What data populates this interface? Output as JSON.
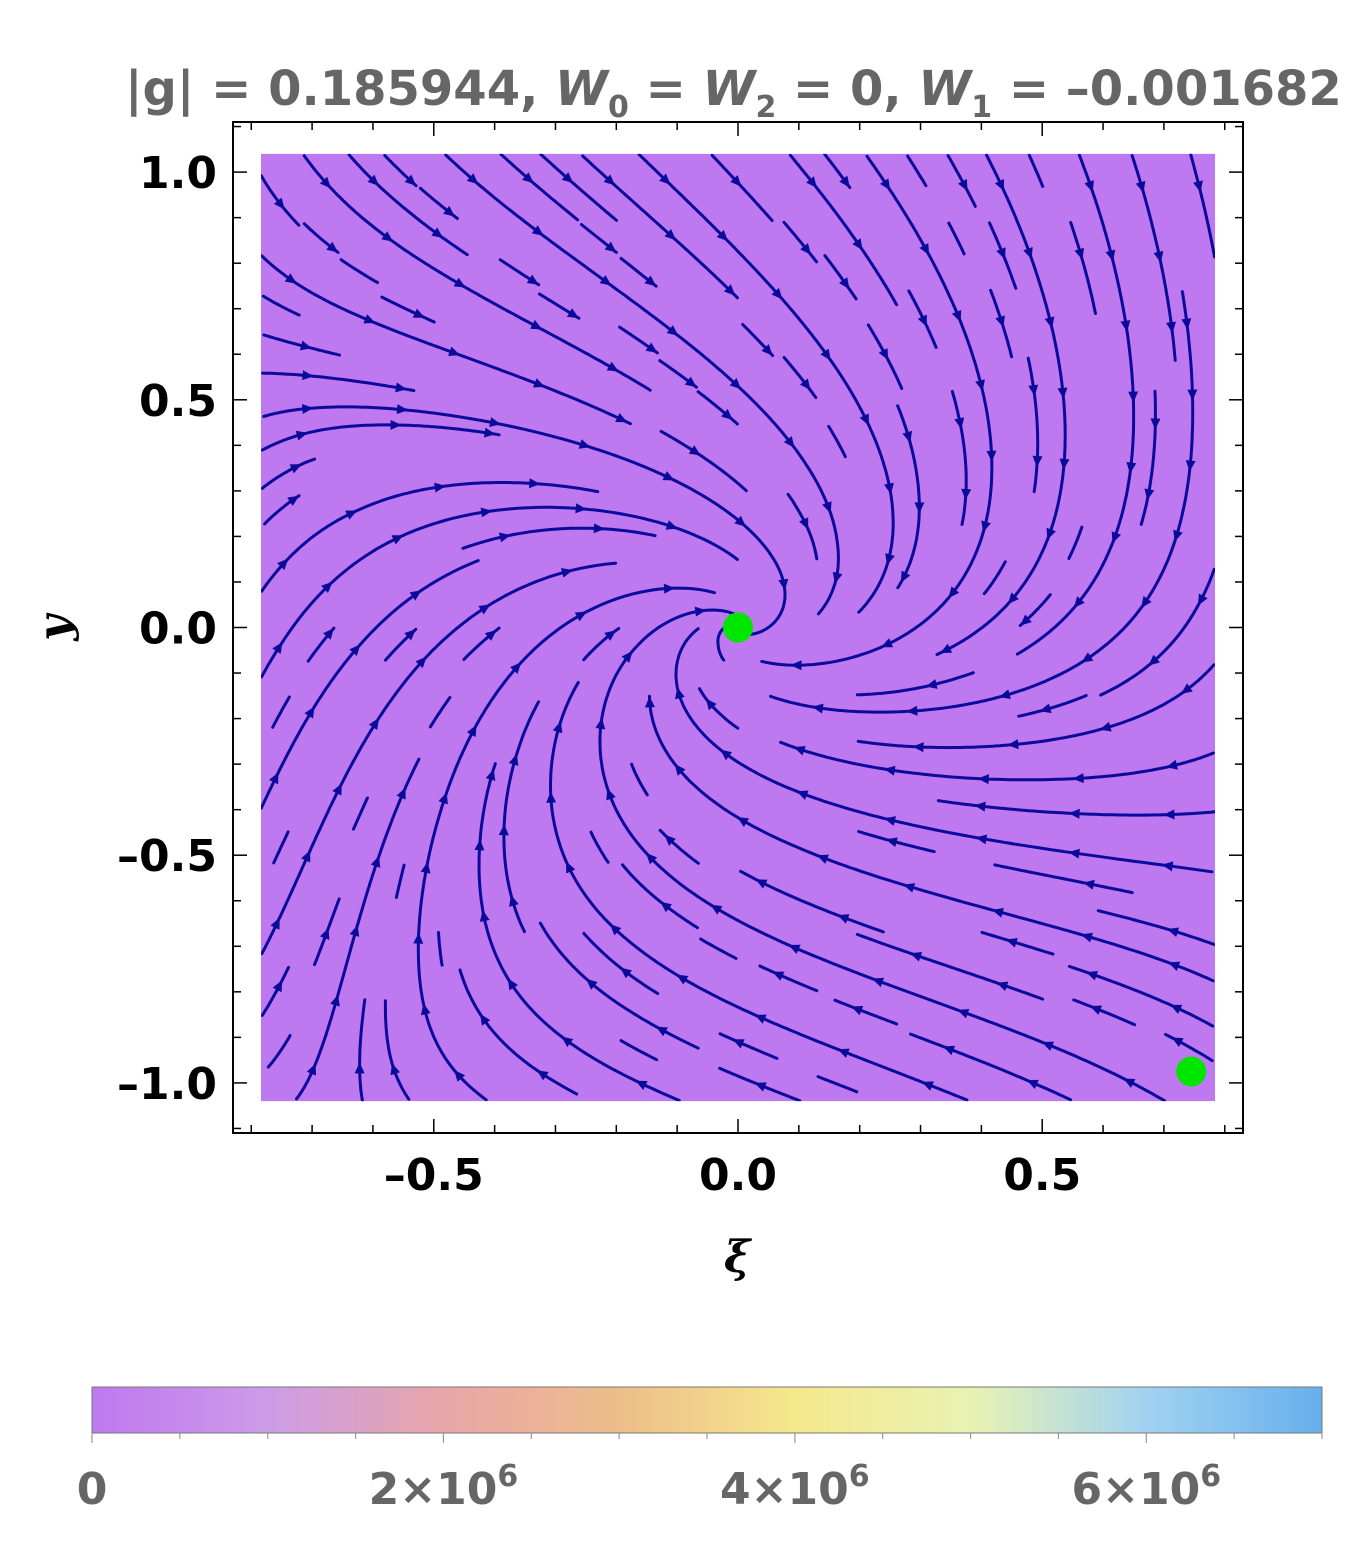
{
  "chart_data": {
    "type": "streamplot",
    "title": {
      "g_text": "|g| = 0.185944, ",
      "w_var": "W",
      "w0_sub": "0",
      "eq1": " = ",
      "w2_sub": "2",
      "eq2": " = 0, ",
      "w1_sub": "1",
      "eq3": " = –0.001682"
    },
    "xlabel": "ξ",
    "ylabel": "y",
    "xlim": [
      -0.83,
      0.83
    ],
    "ylim": [
      -1.11,
      1.11
    ],
    "x_ticks": [
      {
        "value": -0.5,
        "label": "–0.5"
      },
      {
        "value": 0.0,
        "label": "0.0"
      },
      {
        "value": 0.5,
        "label": "0.5"
      }
    ],
    "y_ticks": [
      {
        "value": 1.0,
        "label": "1.0"
      },
      {
        "value": 0.5,
        "label": "0.5"
      },
      {
        "value": 0.0,
        "label": "0.0"
      },
      {
        "value": -0.5,
        "label": "–0.5"
      },
      {
        "value": -1.0,
        "label": "–1.0"
      }
    ],
    "field_region": {
      "x": [
        -0.784,
        0.784
      ],
      "y": [
        -1.04,
        1.04
      ]
    },
    "fixed_points": [
      {
        "x": 0.0,
        "y": 0.0
      },
      {
        "x": 0.745,
        "y": -0.975
      }
    ],
    "colorbar": {
      "min": 0,
      "max": 7000000,
      "ticks": [
        {
          "value": 0,
          "label": "0"
        },
        {
          "value": 2000000,
          "label": "2×10",
          "exp": "6"
        },
        {
          "value": 4000000,
          "label": "4×10",
          "exp": "6"
        },
        {
          "value": 6000000,
          "label": "6×10",
          "exp": "6"
        }
      ],
      "stops": [
        "#be78f0",
        "#cc9ce8",
        "#e8a6a8",
        "#eebd8a",
        "#f5e88c",
        "#e8f2b2",
        "#a2d2f2",
        "#66b0ec"
      ]
    },
    "colors": {
      "field": "#be78f0",
      "stream": "#0a0a9b",
      "fixed_point": "#00e600",
      "title": "#666666"
    }
  }
}
